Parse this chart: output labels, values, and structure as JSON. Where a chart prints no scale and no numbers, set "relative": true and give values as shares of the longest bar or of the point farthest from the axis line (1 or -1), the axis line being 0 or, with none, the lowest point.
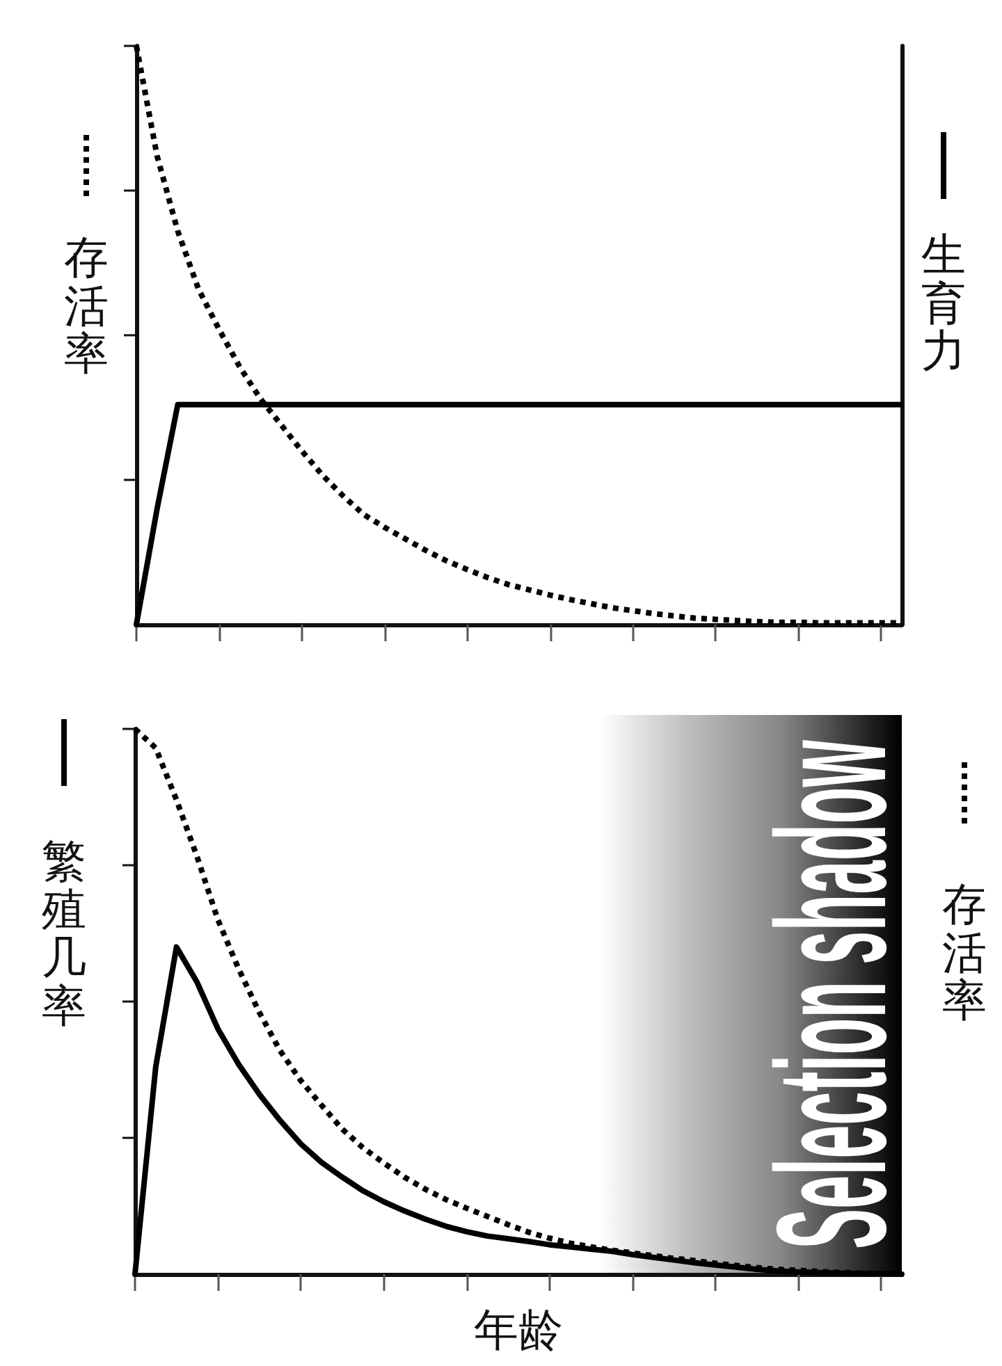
{
  "chart_data": [
    {
      "type": "line",
      "ylabel": "存活率",
      "y2label": "生育力",
      "relative": true,
      "marker": "none",
      "categories": [
        null,
        null,
        null,
        null,
        null,
        null,
        null,
        null,
        null,
        null,
        null,
        null,
        null,
        null,
        null,
        null,
        null,
        null,
        null,
        null,
        null,
        null,
        null,
        null,
        null,
        null,
        null,
        null,
        null,
        null,
        null,
        null,
        null,
        null,
        null,
        null,
        null,
        null
      ],
      "series": [
        {
          "color": "#000000",
          "line_style": "dotted",
          "values": [
            1,
            0.81,
            0.68,
            0.58,
            0.51,
            0.445,
            0.39,
            0.345,
            0.3,
            0.258,
            0.222,
            0.19,
            0.168,
            0.148,
            0.128,
            0.11,
            0.095,
            0.081,
            0.069,
            0.06,
            0.051,
            0.043,
            0.036,
            0.029,
            0.024,
            0.019,
            0.015,
            0.011,
            0.009,
            0.007,
            0.005,
            0.004,
            0.004,
            0.003,
            0.003,
            0.003,
            0.003,
            0.003
          ]
        },
        {
          "color": "#000000",
          "line_style": "solid",
          "values": [
            0,
            0.2,
            0.38,
            0.38,
            0.38,
            0.38,
            0.38,
            0.38,
            0.38,
            0.38,
            0.38,
            0.38,
            0.38,
            0.38,
            0.38,
            0.38,
            0.38,
            0.38,
            0.38,
            0.38,
            0.38,
            0.38,
            0.38,
            0.38,
            0.38,
            0.38,
            0.38,
            0.38,
            0.38,
            0.38,
            0.38,
            0.38,
            0.38,
            0.38,
            0.38,
            0.38,
            0.38,
            0.38
          ]
        }
      ]
    },
    {
      "type": "line",
      "xlabel": "年龄",
      "ylabel": "繁殖几率",
      "y2label": "存活率",
      "relative": true,
      "marker": "none",
      "categories": [
        null,
        null,
        null,
        null,
        null,
        null,
        null,
        null,
        null,
        null,
        null,
        null,
        null,
        null,
        null,
        null,
        null,
        null,
        null,
        null,
        null,
        null,
        null,
        null,
        null,
        null,
        null,
        null,
        null,
        null,
        null,
        null,
        null,
        null,
        null,
        null,
        null,
        null
      ],
      "annotations": [
        "Selection shadow"
      ],
      "series": [
        {
          "color": "#000000",
          "line_style": "solid",
          "values": [
            0,
            0.38,
            0.6,
            0.535,
            0.45,
            0.385,
            0.33,
            0.282,
            0.239,
            0.205,
            0.178,
            0.153,
            0.133,
            0.116,
            0.101,
            0.088,
            0.078,
            0.07,
            0.065,
            0.06,
            0.054,
            0.05,
            0.046,
            0.042,
            0.036,
            0.031,
            0.026,
            0.021,
            0.017,
            0.013,
            0.009,
            0.006,
            0.004,
            0.003,
            0.002,
            0.001,
            0.001,
            0
          ]
        },
        {
          "color": "#000000",
          "line_style": "dotted",
          "values": [
            1,
            0.965,
            0.87,
            0.765,
            0.65,
            0.56,
            0.48,
            0.41,
            0.355,
            0.31,
            0.266,
            0.232,
            0.204,
            0.178,
            0.156,
            0.137,
            0.121,
            0.106,
            0.091,
            0.077,
            0.066,
            0.057,
            0.05,
            0.044,
            0.039,
            0.034,
            0.029,
            0.025,
            0.02,
            0.016,
            0.012,
            0.009,
            0.007,
            0.005,
            0.003,
            0.002,
            0.001,
            0
          ]
        }
      ]
    }
  ]
}
